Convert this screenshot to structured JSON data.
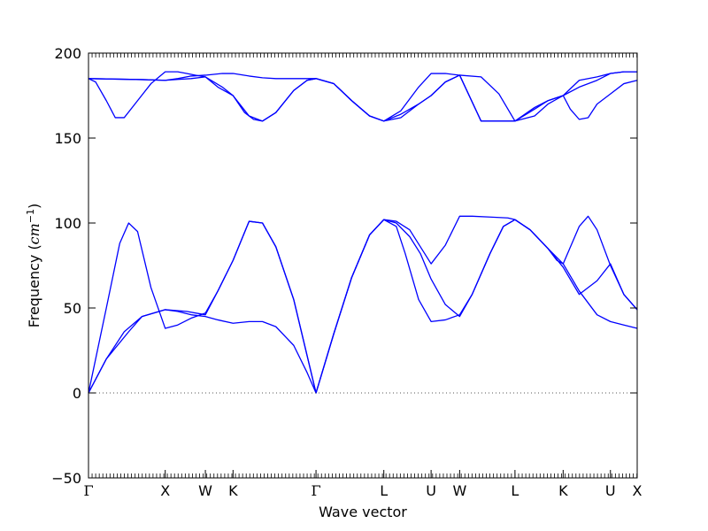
{
  "chart_data": {
    "type": "line",
    "title": "",
    "xlabel": "Wave vector",
    "ylabel": "Frequency",
    "ylabel_unit_base": "cm",
    "ylabel_unit_exp": "−1",
    "ylim": [
      -50,
      200
    ],
    "yticks": [
      -50,
      0,
      50,
      100,
      150,
      200
    ],
    "ytick_labels": [
      "−50",
      "0",
      "50",
      "100",
      "150",
      "200"
    ],
    "zero_line": {
      "y": 0,
      "style": "dotted"
    },
    "grid": false,
    "line_color": "#0000ff",
    "x_range": [
      0,
      6.15
    ],
    "high_symmetry_points": [
      {
        "label": "Γ",
        "x": 0.0
      },
      {
        "label": "X",
        "x": 0.86
      },
      {
        "label": "W",
        "x": 1.31
      },
      {
        "label": "K",
        "x": 1.62
      },
      {
        "label": "Γ",
        "x": 2.55
      },
      {
        "label": "L",
        "x": 3.31
      },
      {
        "label": "U",
        "x": 3.84
      },
      {
        "label": "W",
        "x": 4.16
      },
      {
        "label": "L",
        "x": 4.78
      },
      {
        "label": "K",
        "x": 5.32
      },
      {
        "label": "U",
        "x": 5.85
      },
      {
        "label": "X",
        "x": 6.15
      }
    ],
    "series": [
      {
        "x": [
          0.0,
          0.2,
          0.4,
          0.6,
          0.86,
          1.0,
          1.15,
          1.31,
          1.45,
          1.62,
          1.8,
          1.95,
          2.1,
          2.3,
          2.45,
          2.55,
          2.75,
          2.95,
          3.15,
          3.31,
          3.45,
          3.6,
          3.84,
          4.0,
          4.16,
          4.3,
          4.5,
          4.7,
          4.78,
          4.95,
          5.15,
          5.32,
          5.5,
          5.7,
          5.85,
          6.0,
          6.15
        ],
        "y": [
          0,
          20,
          36,
          45,
          49,
          48,
          46,
          45,
          43,
          41,
          42,
          42,
          39,
          28,
          12,
          0,
          35,
          68,
          93,
          102,
          101,
          96,
          76,
          87,
          104,
          104,
          103.5,
          103,
          102,
          96,
          85,
          76,
          60,
          46,
          42,
          40,
          38
        ]
      },
      {
        "x": [
          0.0,
          0.2,
          0.45,
          0.6,
          0.86,
          1.1,
          1.31,
          1.45,
          1.62,
          1.8,
          1.95,
          2.1,
          2.3,
          2.45,
          2.55,
          2.75,
          2.95,
          3.15,
          3.31,
          3.45,
          3.6,
          3.72,
          3.84,
          4.0,
          4.16,
          4.3,
          4.5,
          4.65,
          4.78,
          4.95,
          5.15,
          5.32,
          5.5,
          5.7,
          5.85,
          6.0,
          6.15
        ],
        "y": [
          0,
          20,
          36,
          45,
          49,
          48,
          46,
          60,
          78,
          101,
          100,
          86,
          55,
          22,
          0,
          35,
          68,
          93,
          102,
          100,
          92,
          82,
          67,
          52,
          45,
          58,
          82,
          98,
          102,
          96,
          85,
          74,
          58,
          66,
          76,
          58,
          49
        ]
      },
      {
        "x": [
          0.0,
          0.2,
          0.35,
          0.45,
          0.55,
          0.7,
          0.86,
          1.0,
          1.15,
          1.31,
          1.45,
          1.62,
          1.8,
          1.95,
          2.1,
          2.3,
          2.45,
          2.55,
          2.75,
          2.95,
          3.15,
          3.31,
          3.45,
          3.55,
          3.7,
          3.84,
          4.0,
          4.16,
          4.3,
          4.5,
          4.65,
          4.78,
          4.95,
          5.15,
          5.25,
          5.32,
          5.5,
          5.6,
          5.7,
          5.85,
          6.0,
          6.15
        ],
        "y": [
          0,
          50,
          88,
          100,
          95,
          62,
          38,
          40,
          44,
          47,
          60,
          78,
          101,
          100,
          86,
          55,
          22,
          0,
          35,
          68,
          93,
          102,
          98,
          82,
          55,
          42,
          43,
          46,
          58,
          82,
          98,
          102,
          96,
          85,
          78,
          76,
          98,
          104,
          96,
          75,
          58,
          49
        ]
      },
      {
        "x": [
          0.0,
          0.2,
          0.4,
          0.6,
          0.86,
          1.0,
          1.15,
          1.31,
          1.5,
          1.62,
          1.8,
          1.95,
          2.1,
          2.3,
          2.45,
          2.55,
          2.75,
          2.95,
          3.15,
          3.31,
          3.5,
          3.7,
          3.84,
          4.0,
          4.16,
          4.4,
          4.6,
          4.78,
          5.0,
          5.15,
          5.32,
          5.5,
          5.7,
          5.85,
          6.0,
          6.15
        ],
        "y": [
          185,
          184.8,
          184.6,
          184.4,
          184,
          185,
          186.5,
          187,
          188,
          188,
          186.5,
          185.5,
          185,
          185,
          185,
          185,
          182,
          172,
          163,
          160,
          166,
          180,
          188,
          188,
          187,
          160,
          160,
          160,
          167,
          172,
          175,
          180,
          184,
          188,
          189,
          189
        ]
      },
      {
        "x": [
          0.0,
          0.2,
          0.4,
          0.6,
          0.86,
          1.0,
          1.15,
          1.31,
          1.5,
          1.62,
          1.8,
          1.95,
          2.1,
          2.3,
          2.45,
          2.55,
          2.75,
          2.95,
          3.15,
          3.31,
          3.5,
          3.7,
          3.84,
          4.0,
          4.16,
          4.4,
          4.6,
          4.78,
          5.0,
          5.15,
          5.32,
          5.5,
          5.7,
          5.85,
          6.0,
          6.15
        ],
        "y": [
          185,
          184.8,
          184.6,
          184.4,
          184,
          184.5,
          185,
          186,
          180,
          175,
          163,
          160,
          165,
          178,
          184,
          185,
          182,
          172,
          163,
          160,
          164,
          170,
          175,
          183,
          187,
          160,
          160,
          160,
          168,
          172,
          175,
          184,
          186,
          188,
          189,
          189
        ]
      },
      {
        "x": [
          0.0,
          0.08,
          0.2,
          0.3,
          0.4,
          0.55,
          0.7,
          0.86,
          1.0,
          1.1,
          1.2,
          1.31,
          1.45,
          1.62,
          1.75,
          1.85,
          1.95,
          2.1,
          2.3,
          2.45,
          2.55,
          2.75,
          2.95,
          3.15,
          3.31,
          3.5,
          3.7,
          3.84,
          4.0,
          4.16,
          4.4,
          4.6,
          4.78,
          5.0,
          5.15,
          5.32,
          5.4,
          5.5,
          5.6,
          5.7,
          5.85,
          6.0,
          6.15
        ],
        "y": [
          185,
          183,
          172,
          162,
          162,
          172,
          182,
          189,
          189,
          188,
          187,
          186,
          180,
          175,
          165,
          161,
          160,
          165,
          178,
          184,
          185,
          182,
          172,
          163,
          160,
          162,
          170,
          175,
          183,
          187,
          186,
          176,
          160,
          163,
          170,
          175,
          167,
          161,
          162,
          170,
          176,
          182,
          184
        ]
      }
    ]
  }
}
